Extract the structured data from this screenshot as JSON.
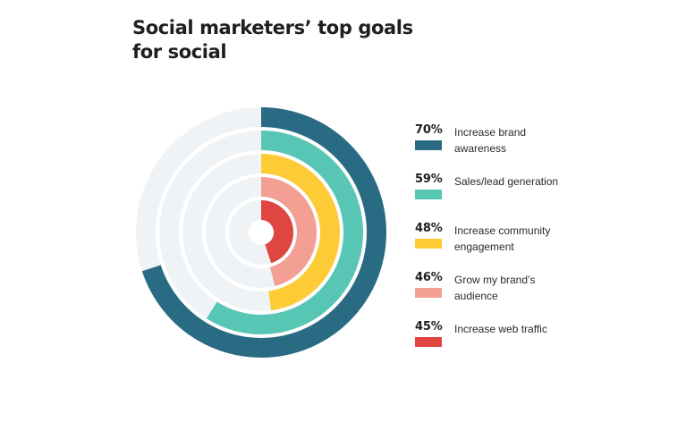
{
  "title": "Social marketers’ top goals for social",
  "colors": {
    "track": "#f0f3f5",
    "text": "#1f1f1f"
  },
  "chart_data": {
    "type": "radial-bar",
    "title": "Social marketers’ top goals for social",
    "max": 100,
    "unit": "%",
    "series": [
      {
        "label": "Increase brand awareness",
        "value": 70,
        "value_label": "70%",
        "color": "#2a6b84"
      },
      {
        "label": "Sales/lead generation",
        "value": 59,
        "value_label": "59%",
        "color": "#58c6b4"
      },
      {
        "label": "Increase community engagement",
        "value": 48,
        "value_label": "48%",
        "color": "#fdcb35"
      },
      {
        "label": "Grow my brand’s audience",
        "value": 46,
        "value_label": "46%",
        "color": "#f39f94"
      },
      {
        "label": "Increase web traffic",
        "value": 45,
        "value_label": "45%",
        "color": "#df4642"
      }
    ],
    "legend_position": "right"
  }
}
